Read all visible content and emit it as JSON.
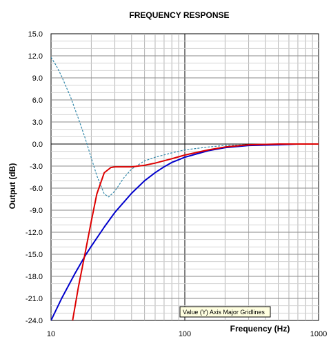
{
  "chart_data": {
    "type": "line",
    "title": "FREQUENCY RESPONSE",
    "xlabel": "Frequency (Hz)",
    "ylabel": "Output (dB)",
    "x_scale": "log",
    "xlim": [
      10,
      1000
    ],
    "ylim": [
      -24,
      15
    ],
    "x_ticks": [
      "10",
      "100",
      "1000"
    ],
    "y_ticks": [
      "15.0",
      "12.0",
      "9.0",
      "6.0",
      "3.0",
      "0.0",
      "-3.0",
      "-6.0",
      "-9.0",
      "-12.0",
      "-15.0",
      "-18.0",
      "-21.0",
      "-24.0"
    ],
    "grid": true,
    "tooltip": "Value (Y) Axis Major Gridlines",
    "series": [
      {
        "color": "#0000cc",
        "style": "solid",
        "x": [
          10,
          12,
          15,
          18,
          20,
          25,
          30,
          40,
          50,
          60,
          70,
          80,
          100,
          150,
          200,
          300,
          500,
          700,
          1000
        ],
        "y": [
          -24.0,
          -21.0,
          -17.7,
          -15.2,
          -13.9,
          -11.3,
          -9.3,
          -6.7,
          -5.0,
          -3.9,
          -3.1,
          -2.5,
          -1.8,
          -0.9,
          -0.5,
          -0.2,
          -0.1,
          0.0,
          0.0
        ]
      },
      {
        "color": "#dd0000",
        "style": "solid",
        "x": [
          14.5,
          16,
          18,
          20,
          22,
          25,
          28,
          30,
          35,
          40,
          50,
          60,
          80,
          100,
          150,
          200,
          300,
          500,
          1000
        ],
        "y": [
          -24.0,
          -19.5,
          -14.8,
          -10.5,
          -6.8,
          -3.9,
          -3.2,
          -3.1,
          -3.1,
          -3.1,
          -2.9,
          -2.6,
          -2.0,
          -1.5,
          -0.8,
          -0.4,
          -0.1,
          0.0,
          0.0
        ]
      },
      {
        "color": "#3388aa",
        "style": "dotted",
        "x": [
          10,
          11,
          12,
          14,
          16,
          18,
          20,
          22,
          25,
          27,
          30,
          35,
          40,
          50,
          60,
          80,
          100,
          150,
          200,
          300,
          500,
          1000
        ],
        "y": [
          11.8,
          10.6,
          9.2,
          6.4,
          3.5,
          0.8,
          -1.9,
          -4.3,
          -6.8,
          -7.2,
          -6.4,
          -4.6,
          -3.4,
          -2.3,
          -1.8,
          -1.2,
          -0.8,
          -0.4,
          -0.2,
          -0.1,
          0.0,
          0.0
        ]
      }
    ]
  }
}
